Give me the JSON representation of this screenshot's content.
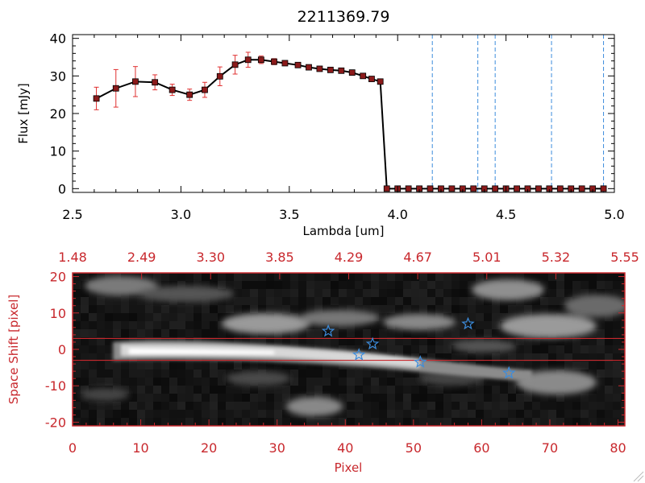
{
  "chart_data": [
    {
      "type": "line",
      "title": "2211369.79",
      "xlabel": "Lambda [um]",
      "ylabel": "Flux [mJy]",
      "xlim": [
        2.5,
        5.0
      ],
      "ylim": [
        -1,
        41
      ],
      "xticks": [
        "2.5",
        "3.0",
        "3.5",
        "4.0",
        "4.5",
        "5.0"
      ],
      "yticks": [
        "0",
        "10",
        "20",
        "30",
        "40"
      ],
      "grid": false,
      "series": [
        {
          "color": "#000000",
          "marker_color": "#8b1a1a",
          "errorbar_color": "#e03030",
          "x": [
            2.61,
            2.7,
            2.79,
            2.88,
            2.96,
            3.04,
            3.11,
            3.18,
            3.25,
            3.31,
            3.37,
            3.43,
            3.48,
            3.54,
            3.59,
            3.64,
            3.69,
            3.74,
            3.79,
            3.84,
            3.88,
            3.92,
            3.95,
            4.0,
            4.05,
            4.1,
            4.15,
            4.2,
            4.25,
            4.3,
            4.35,
            4.4,
            4.45,
            4.5,
            4.55,
            4.6,
            4.65,
            4.7,
            4.75,
            4.8,
            4.85,
            4.9,
            4.95
          ],
          "y": [
            24.0,
            26.7,
            28.5,
            28.3,
            26.3,
            25.0,
            26.3,
            29.9,
            33.0,
            34.3,
            34.3,
            33.8,
            33.4,
            32.9,
            32.3,
            31.9,
            31.6,
            31.4,
            30.9,
            30.0,
            29.2,
            28.5,
            0,
            0,
            0,
            0,
            0,
            0,
            0,
            0,
            0,
            0,
            0,
            0,
            0,
            0,
            0,
            0,
            0,
            0,
            0,
            0,
            0
          ],
          "yerr": [
            3.0,
            5.0,
            4.0,
            2.0,
            1.5,
            1.5,
            2.0,
            2.5,
            2.5,
            2.0,
            1.0,
            0.8,
            0.6,
            0.6,
            0.5,
            0.5,
            0.5,
            0.5,
            0.5,
            0.5,
            0.5,
            0.5,
            0,
            0,
            0,
            0,
            0,
            0,
            0,
            0,
            0,
            0,
            0,
            0,
            0,
            0,
            0,
            0,
            0,
            0,
            0,
            0,
            0
          ]
        }
      ],
      "vlines": {
        "color": "#3c8cdc",
        "x": [
          4.16,
          4.37,
          4.45,
          4.71,
          4.95
        ]
      }
    },
    {
      "type": "heatmap",
      "xlabel": "Pixel",
      "ylabel": "Space Shift [pixel]",
      "xlim": [
        0,
        81
      ],
      "ylim": [
        -21,
        21
      ],
      "xticks": [
        "0",
        "10",
        "20",
        "30",
        "40",
        "50",
        "60",
        "70",
        "80"
      ],
      "yticks": [
        "20",
        "10",
        "0",
        "-10",
        "-20"
      ],
      "top_xticks": [
        "1.48",
        "2.49",
        "3.30",
        "3.85",
        "4.29",
        "4.67",
        "5.01",
        "5.32",
        "5.55"
      ],
      "colormap": "grayscale",
      "axis_color": "#c8282d",
      "hlines": {
        "color": "#c8282d",
        "y": [
          3,
          -3
        ]
      },
      "markers": {
        "symbol": "star",
        "color": "#3c8cdc",
        "points": [
          {
            "x": 37.5,
            "y": 5
          },
          {
            "x": 42,
            "y": -1.5
          },
          {
            "x": 44,
            "y": 1.5
          },
          {
            "x": 51,
            "y": -3.5
          },
          {
            "x": 58,
            "y": 7
          },
          {
            "x": 64,
            "y": -6.5
          }
        ]
      }
    }
  ]
}
